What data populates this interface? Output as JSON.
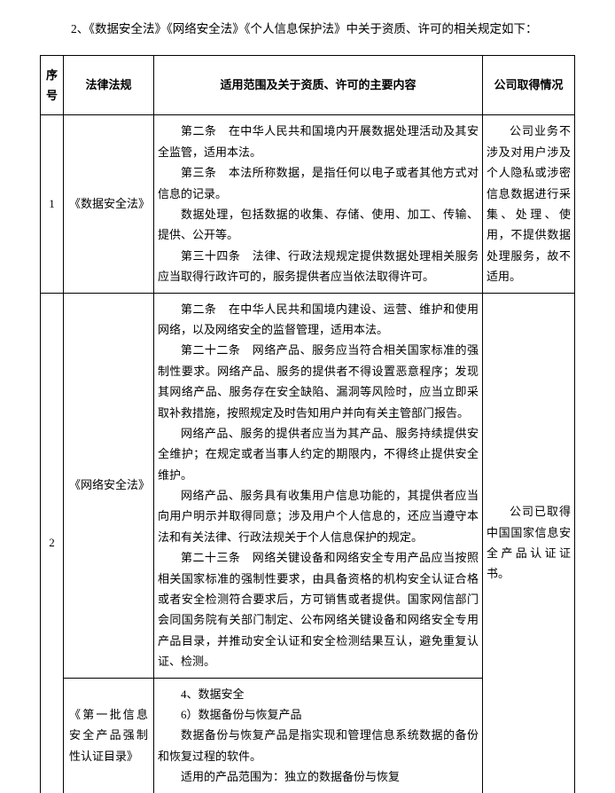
{
  "intro": "2、《数据安全法》《网络安全法》《个人信息保护法》中关于资质、许可的相关规定如下：",
  "headers": {
    "seq": "序号",
    "law": "法律法规",
    "content": "适用范围及关于资质、许可的主要内容",
    "status": "公司取得情况"
  },
  "row1": {
    "seq": "1",
    "law": "《数据安全法》",
    "content": {
      "p1": "第二条　在中华人民共和国境内开展数据处理活动及其安全监管，适用本法。",
      "p2": "第三条　本法所称数据，是指任何以电子或者其他方式对信息的记录。",
      "p3": "数据处理，包括数据的收集、存储、使用、加工、传输、提供、公开等。",
      "p4": "第三十四条　法律、行政法规规定提供数据处理相关服务应当取得行政许可的，服务提供者应当依法取得许可。"
    },
    "status": "公司业务不涉及对用户涉及个人隐私或涉密信息数据进行采集、处理、使用，不提供数据处理服务，故不适用。"
  },
  "row2a": {
    "law": "《网络安全法》",
    "content": {
      "p1": "第二条　在中华人民共和国境内建设、运营、维护和使用网络，以及网络安全的监督管理，适用本法。",
      "p2": "第二十二条　网络产品、服务应当符合相关国家标准的强制性要求。网络产品、服务的提供者不得设置恶意程序；发现其网络产品、服务存在安全缺陷、漏洞等风险时，应当立即采取补救措施，按照规定及时告知用户并向有关主管部门报告。",
      "p3": "网络产品、服务的提供者应当为其产品、服务持续提供安全维护；在规定或者当事人约定的期限内，不得终止提供安全维护。",
      "p4": "网络产品、服务具有收集用户信息功能的，其提供者应当向用户明示并取得同意；涉及用户个人信息的，还应当遵守本法和有关法律、行政法规关于个人信息保护的规定。",
      "p5": "第二十三条　网络关键设备和网络安全专用产品应当按照相关国家标准的强制性要求，由具备资格的机构安全认证合格或者安全检测符合要求后，方可销售或者提供。国家网信部门会同国务院有关部门制定、公布网络关键设备和网络安全专用产品目录，并推动安全认证和安全检测结果互认，避免重复认证、检测。"
    }
  },
  "row2_seq": "2",
  "row2_status": "公司已取得中国国家信息安全产品认证证书。",
  "row2b": {
    "law": "《第一批信息安全产品强制性认证目录》",
    "content": {
      "p1": "4、数据安全",
      "p2": "6）数据备份与恢复产品",
      "p3": "数据备份与恢复产品是指实现和管理信息系统数据的备份和恢复过程的软件。",
      "p4": "适用的产品范围为：独立的数据备份与恢复"
    }
  }
}
